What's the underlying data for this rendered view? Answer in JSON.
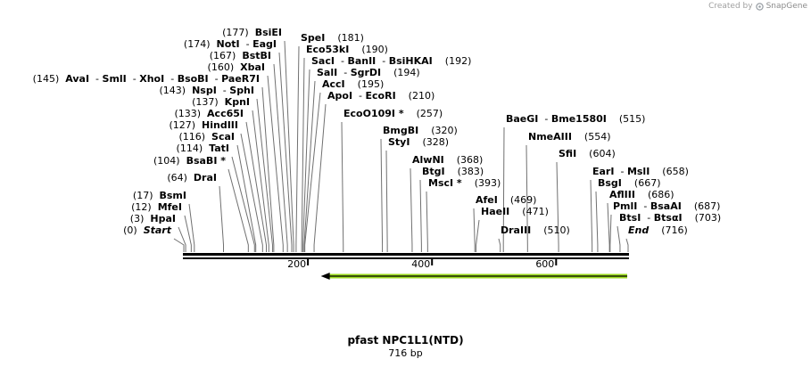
{
  "credit": {
    "prefix": "Created by",
    "brand": "SnapGene"
  },
  "map": {
    "title": "pfast NPC1L1(NTD)",
    "length_label": "716 bp",
    "length": 716,
    "ruler_ticks": [
      {
        "pos": 200,
        "label": "200"
      },
      {
        "pos": 400,
        "label": "400"
      },
      {
        "pos": 600,
        "label": "600"
      }
    ],
    "feature_arrow": {
      "start": 218,
      "end": 716,
      "direction": "reverse",
      "color": "#9ad81e"
    },
    "sites": [
      {
        "pos": 0,
        "parts": [
          "Start"
        ],
        "pos_label": "(0)",
        "italic": true
      },
      {
        "pos": 3,
        "parts": [
          "HpaI"
        ],
        "pos_label": "(3)"
      },
      {
        "pos": 12,
        "parts": [
          "MfeI"
        ],
        "pos_label": "(12)"
      },
      {
        "pos": 17,
        "parts": [
          "BsmI"
        ],
        "pos_label": "(17)"
      },
      {
        "pos": 64,
        "parts": [
          "DraI"
        ],
        "pos_label": "(64)"
      },
      {
        "pos": 104,
        "parts": [
          "BsaBI *"
        ],
        "pos_label": "(104)"
      },
      {
        "pos": 114,
        "parts": [
          "TatI"
        ],
        "pos_label": "(114)"
      },
      {
        "pos": 116,
        "parts": [
          "ScaI"
        ],
        "pos_label": "(116)"
      },
      {
        "pos": 127,
        "parts": [
          "HindIII"
        ],
        "pos_label": "(127)"
      },
      {
        "pos": 133,
        "parts": [
          "Acc65I"
        ],
        "pos_label": "(133)"
      },
      {
        "pos": 137,
        "parts": [
          "KpnI"
        ],
        "pos_label": "(137)"
      },
      {
        "pos": 143,
        "parts": [
          "NspI",
          "SphI"
        ],
        "pos_label": "(143)"
      },
      {
        "pos": 145,
        "parts": [
          "AvaI",
          "SmlI",
          "XhoI",
          "BsoBI",
          "PaeR7I"
        ],
        "pos_label": "(145)"
      },
      {
        "pos": 160,
        "parts": [
          "XbaI"
        ],
        "pos_label": "(160)"
      },
      {
        "pos": 167,
        "parts": [
          "BstBI"
        ],
        "pos_label": "(167)"
      },
      {
        "pos": 174,
        "parts": [
          "NotI",
          "EagI"
        ],
        "pos_label": "(174)"
      },
      {
        "pos": 177,
        "parts": [
          "BsiEI"
        ],
        "pos_label": "(177)"
      },
      {
        "pos": 181,
        "parts": [
          "SpeI"
        ],
        "pos_label": "(181)"
      },
      {
        "pos": 190,
        "parts": [
          "Eco53kI"
        ],
        "pos_label": "(190)"
      },
      {
        "pos": 192,
        "parts": [
          "SacI",
          "BanII",
          "BsiHKAI"
        ],
        "pos_label": "(192)"
      },
      {
        "pos": 194,
        "parts": [
          "SalI",
          "SgrDI"
        ],
        "pos_label": "(194)"
      },
      {
        "pos": 195,
        "parts": [
          "AccI"
        ],
        "pos_label": "(195)"
      },
      {
        "pos": 210,
        "parts": [
          "ApoI",
          "EcoRI"
        ],
        "pos_label": "(210)"
      },
      {
        "pos": 257,
        "parts": [
          "EcoO109I *"
        ],
        "pos_label": "(257)"
      },
      {
        "pos": 320,
        "parts": [
          "BmgBI"
        ],
        "pos_label": "(320)"
      },
      {
        "pos": 328,
        "parts": [
          "StyI"
        ],
        "pos_label": "(328)"
      },
      {
        "pos": 368,
        "parts": [
          "AlwNI"
        ],
        "pos_label": "(368)"
      },
      {
        "pos": 383,
        "parts": [
          "BtgI"
        ],
        "pos_label": "(383)"
      },
      {
        "pos": 393,
        "parts": [
          "MscI *"
        ],
        "pos_label": "(393)"
      },
      {
        "pos": 469,
        "parts": [
          "AfeI"
        ],
        "pos_label": "(469)"
      },
      {
        "pos": 471,
        "parts": [
          "HaeII"
        ],
        "pos_label": "(471)"
      },
      {
        "pos": 510,
        "parts": [
          "DraIII"
        ],
        "pos_label": "(510)"
      },
      {
        "pos": 515,
        "parts": [
          "BaeGI",
          "Bme1580I"
        ],
        "pos_label": "(515)"
      },
      {
        "pos": 554,
        "parts": [
          "NmeAIII"
        ],
        "pos_label": "(554)"
      },
      {
        "pos": 604,
        "parts": [
          "SfiI"
        ],
        "pos_label": "(604)"
      },
      {
        "pos": 658,
        "parts": [
          "EarI",
          "MslI"
        ],
        "pos_label": "(658)"
      },
      {
        "pos": 667,
        "parts": [
          "BsgI"
        ],
        "pos_label": "(667)"
      },
      {
        "pos": 686,
        "parts": [
          "AflIII"
        ],
        "pos_label": "(686)"
      },
      {
        "pos": 687,
        "parts": [
          "PmlI",
          "BsaAI"
        ],
        "pos_label": "(687)"
      },
      {
        "pos": 703,
        "parts": [
          "BtsI",
          "BtsαI"
        ],
        "pos_label": "(703)"
      },
      {
        "pos": 716,
        "parts": [
          "End"
        ],
        "pos_label": "(716)",
        "italic": true
      }
    ]
  }
}
